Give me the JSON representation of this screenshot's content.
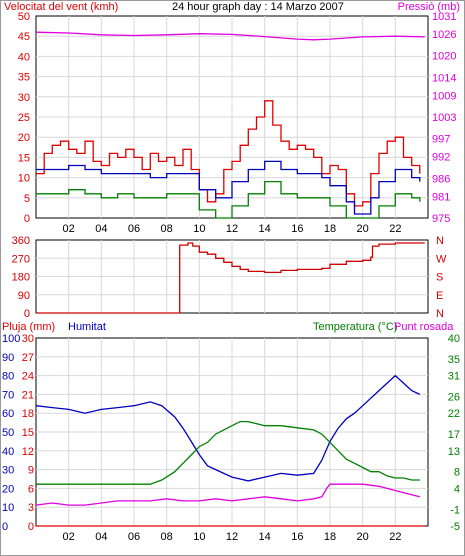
{
  "colors": {
    "wind": "#e00000",
    "wind_avg": "#0000c0",
    "wind_min": "#008000",
    "pressure": "#e000e0",
    "direction": "#d00000",
    "rain": "#e00000",
    "humidity": "#0000c0",
    "temperature": "#008000",
    "dewpoint": "#e000e0",
    "grid": "#d8d8d8",
    "frame": "#000000",
    "background": "#ffffff"
  },
  "chart_data": [
    {
      "type": "line",
      "title": "24 hour graph day : 14 Marzo 2007",
      "ylabel_left": "Velocitat del vent (kmh)",
      "ylabel_right": "Pressió (mb)",
      "x_ticks": [
        "02",
        "04",
        "06",
        "08",
        "10",
        "12",
        "14",
        "16",
        "18",
        "20",
        "22"
      ],
      "xlim": [
        0,
        24
      ],
      "ylim": [
        0,
        50
      ],
      "y_ticks": [
        0,
        5,
        10,
        15,
        20,
        25,
        30,
        35,
        40,
        45,
        50
      ],
      "y2lim": [
        975,
        1031
      ],
      "y2_ticks": [
        975,
        981,
        986,
        992,
        997,
        1003,
        1009,
        1014,
        1020,
        1026,
        1031
      ],
      "grid": true,
      "series": [
        {
          "name": "Velocitat del vent (kmh)",
          "axis": "left",
          "values": [
            [
              0,
              11
            ],
            [
              0.5,
              16
            ],
            [
              1,
              18
            ],
            [
              1.5,
              19
            ],
            [
              2,
              17
            ],
            [
              2.5,
              16
            ],
            [
              3,
              19
            ],
            [
              3.5,
              14
            ],
            [
              4,
              13
            ],
            [
              4.5,
              16
            ],
            [
              5,
              15
            ],
            [
              5.5,
              17
            ],
            [
              6,
              15
            ],
            [
              6.5,
              12
            ],
            [
              7,
              16
            ],
            [
              7.5,
              14
            ],
            [
              8,
              15
            ],
            [
              8.5,
              13
            ],
            [
              9,
              17
            ],
            [
              9.5,
              12
            ],
            [
              10,
              7
            ],
            [
              10.5,
              4
            ],
            [
              11,
              6
            ],
            [
              11.5,
              12
            ],
            [
              12,
              14
            ],
            [
              12.5,
              18
            ],
            [
              13,
              22
            ],
            [
              13.5,
              25
            ],
            [
              14,
              29
            ],
            [
              14.5,
              23
            ],
            [
              15,
              19
            ],
            [
              15.5,
              17
            ],
            [
              16,
              18
            ],
            [
              16.5,
              17
            ],
            [
              17,
              15
            ],
            [
              17.5,
              11
            ],
            [
              18,
              13
            ],
            [
              18.5,
              12
            ],
            [
              19,
              6
            ],
            [
              19.5,
              3
            ],
            [
              20,
              4
            ],
            [
              20.5,
              11
            ],
            [
              21,
              16
            ],
            [
              21.5,
              19
            ],
            [
              22,
              20
            ],
            [
              22.5,
              15
            ],
            [
              23,
              13
            ],
            [
              23.5,
              11
            ]
          ]
        },
        {
          "name": "",
          "axis": "left",
          "values": [
            [
              0,
              12
            ],
            [
              1,
              12
            ],
            [
              2,
              13
            ],
            [
              3,
              12
            ],
            [
              4,
              11
            ],
            [
              5,
              11
            ],
            [
              6,
              11
            ],
            [
              7,
              10
            ],
            [
              8,
              11
            ],
            [
              9,
              11
            ],
            [
              10,
              7
            ],
            [
              11,
              5
            ],
            [
              12,
              9
            ],
            [
              13,
              12
            ],
            [
              14,
              14
            ],
            [
              15,
              12
            ],
            [
              16,
              11
            ],
            [
              17,
              11
            ],
            [
              17.5,
              10
            ],
            [
              18,
              8
            ],
            [
              19,
              4
            ],
            [
              19.5,
              1
            ],
            [
              20,
              1
            ],
            [
              20.5,
              5
            ],
            [
              21,
              9
            ],
            [
              22,
              12
            ],
            [
              23,
              10
            ],
            [
              23.5,
              9
            ]
          ]
        },
        {
          "name": "",
          "axis": "left",
          "values": [
            [
              0,
              6
            ],
            [
              1,
              6
            ],
            [
              2,
              7
            ],
            [
              3,
              6
            ],
            [
              4,
              5
            ],
            [
              5,
              6
            ],
            [
              6,
              5
            ],
            [
              7,
              5
            ],
            [
              8,
              6
            ],
            [
              9,
              6
            ],
            [
              10,
              2
            ],
            [
              11,
              0
            ],
            [
              12,
              3
            ],
            [
              13,
              6
            ],
            [
              14,
              9
            ],
            [
              15,
              6
            ],
            [
              16,
              5
            ],
            [
              17,
              5
            ],
            [
              18,
              3
            ],
            [
              19,
              0
            ],
            [
              20,
              0
            ],
            [
              21,
              3
            ],
            [
              22,
              6
            ],
            [
              23,
              5
            ],
            [
              23.5,
              4
            ]
          ]
        },
        {
          "name": "Pressió (mb)",
          "axis": "right",
          "values": [
            [
              0,
              1026.5
            ],
            [
              2,
              1026.3
            ],
            [
              4,
              1025.8
            ],
            [
              6,
              1025.6
            ],
            [
              8,
              1025.8
            ],
            [
              10,
              1026.1
            ],
            [
              12,
              1025.9
            ],
            [
              14,
              1025.3
            ],
            [
              16,
              1024.6
            ],
            [
              17,
              1024.4
            ],
            [
              18,
              1024.6
            ],
            [
              20,
              1025.2
            ],
            [
              22,
              1025.4
            ],
            [
              23.8,
              1025.2
            ]
          ]
        }
      ]
    },
    {
      "type": "line",
      "ylim": [
        0,
        360
      ],
      "y_ticks": [
        0,
        90,
        180,
        270,
        360
      ],
      "y2_ticks": [
        "N",
        "W",
        "S",
        "E",
        "N"
      ],
      "x_ticks": [
        "02",
        "04",
        "06",
        "08",
        "10",
        "12",
        "14",
        "16",
        "18",
        "20",
        "22"
      ],
      "xlim": [
        0,
        24
      ],
      "grid": true,
      "series": [
        {
          "name": "",
          "values": [
            [
              0,
              0
            ],
            [
              8.8,
              0
            ],
            [
              8.8,
              335
            ],
            [
              9.3,
              345
            ],
            [
              9.6,
              330
            ],
            [
              10,
              300
            ],
            [
              10.5,
              290
            ],
            [
              11,
              270
            ],
            [
              11.5,
              250
            ],
            [
              12,
              230
            ],
            [
              12.5,
              215
            ],
            [
              13,
              205
            ],
            [
              14,
              200
            ],
            [
              15,
              210
            ],
            [
              16,
              215
            ],
            [
              17,
              215
            ],
            [
              17.5,
              220
            ],
            [
              18,
              240
            ],
            [
              19,
              255
            ],
            [
              20,
              260
            ],
            [
              20.5,
              275
            ],
            [
              20.6,
              330
            ],
            [
              21,
              340
            ],
            [
              22,
              345
            ],
            [
              23,
              345
            ],
            [
              23.8,
              345
            ]
          ]
        }
      ]
    },
    {
      "type": "line",
      "ylabel_rain": "Pluja (mm)",
      "ylabel_humidity": "Humitat",
      "ylabel_right": "Temperatura (°C)",
      "ylabel_right2": "Punt rosada",
      "x_ticks": [
        "02",
        "04",
        "06",
        "08",
        "10",
        "12",
        "14",
        "16",
        "18",
        "20",
        "22"
      ],
      "xlim": [
        0,
        24
      ],
      "rain_ticks": [
        0,
        3,
        6,
        9,
        12,
        15,
        18,
        21,
        24,
        27,
        30
      ],
      "rain_lim": [
        0,
        30
      ],
      "humidity_ticks": [
        0,
        10,
        20,
        30,
        40,
        50,
        60,
        70,
        80,
        90,
        100
      ],
      "humidity_lim": [
        0,
        100
      ],
      "temperature_ticks": [
        -5,
        -1,
        4,
        8,
        13,
        17,
        22,
        26,
        31,
        35,
        40
      ],
      "temperature_lim": [
        -5,
        40
      ],
      "grid": true,
      "series": [
        {
          "name": "Pluja (mm)",
          "axis": "rain",
          "values": [
            [
              0,
              0
            ],
            [
              23.8,
              0
            ]
          ]
        },
        {
          "name": "Humitat",
          "axis": "humidity",
          "values": [
            [
              0,
              64
            ],
            [
              1,
              63
            ],
            [
              2,
              62
            ],
            [
              3,
              60
            ],
            [
              4,
              62
            ],
            [
              5,
              63
            ],
            [
              6,
              64
            ],
            [
              7,
              66
            ],
            [
              7.7,
              64
            ],
            [
              8.5,
              58
            ],
            [
              9,
              52
            ],
            [
              9.5,
              45
            ],
            [
              10,
              38
            ],
            [
              10.5,
              32
            ],
            [
              11,
              30
            ],
            [
              11.5,
              28
            ],
            [
              12,
              26
            ],
            [
              12.5,
              25
            ],
            [
              13,
              24
            ],
            [
              14,
              26
            ],
            [
              15,
              28
            ],
            [
              16,
              27
            ],
            [
              17,
              28
            ],
            [
              17.5,
              35
            ],
            [
              18,
              45
            ],
            [
              18.5,
              52
            ],
            [
              19,
              57
            ],
            [
              19.5,
              60
            ],
            [
              20,
              64
            ],
            [
              20.5,
              68
            ],
            [
              21,
              72
            ],
            [
              21.5,
              76
            ],
            [
              22,
              80
            ],
            [
              22.5,
              76
            ],
            [
              23,
              72
            ],
            [
              23.5,
              70
            ]
          ]
        },
        {
          "name": "Temperatura (°C)",
          "axis": "temperature",
          "values": [
            [
              0,
              5
            ],
            [
              1,
              5
            ],
            [
              2,
              5
            ],
            [
              3,
              5
            ],
            [
              4,
              5
            ],
            [
              5,
              5
            ],
            [
              6,
              5
            ],
            [
              7,
              5
            ],
            [
              7.7,
              6
            ],
            [
              8.5,
              8
            ],
            [
              9,
              10
            ],
            [
              9.5,
              12
            ],
            [
              10,
              14
            ],
            [
              10.5,
              15
            ],
            [
              11,
              17
            ],
            [
              11.5,
              18
            ],
            [
              12,
              19
            ],
            [
              12.5,
              20
            ],
            [
              13,
              20
            ],
            [
              14,
              19
            ],
            [
              15,
              19
            ],
            [
              16,
              18.5
            ],
            [
              17,
              18
            ],
            [
              17.5,
              17
            ],
            [
              18,
              15
            ],
            [
              18.5,
              13
            ],
            [
              19,
              11
            ],
            [
              19.5,
              10
            ],
            [
              20,
              9
            ],
            [
              20.5,
              8
            ],
            [
              21,
              8
            ],
            [
              21.5,
              7
            ],
            [
              22,
              6.5
            ],
            [
              22.5,
              6.5
            ],
            [
              23,
              6
            ],
            [
              23.5,
              6
            ]
          ]
        },
        {
          "name": "Punt rosada",
          "axis": "temperature",
          "values": [
            [
              0,
              0
            ],
            [
              1,
              0.5
            ],
            [
              2,
              0
            ],
            [
              3,
              0
            ],
            [
              4,
              0.5
            ],
            [
              5,
              1
            ],
            [
              6,
              1
            ],
            [
              7,
              1
            ],
            [
              8,
              1.5
            ],
            [
              9,
              1
            ],
            [
              10,
              1
            ],
            [
              11,
              1.5
            ],
            [
              12,
              1
            ],
            [
              13,
              1.5
            ],
            [
              14,
              2
            ],
            [
              15,
              1.5
            ],
            [
              16,
              1
            ],
            [
              17,
              1.5
            ],
            [
              17.5,
              2
            ],
            [
              17.8,
              4
            ],
            [
              18,
              5
            ],
            [
              19,
              5
            ],
            [
              20,
              5
            ],
            [
              21,
              4.5
            ],
            [
              22,
              3.5
            ],
            [
              23,
              2.5
            ],
            [
              23.5,
              2
            ]
          ]
        }
      ]
    }
  ]
}
